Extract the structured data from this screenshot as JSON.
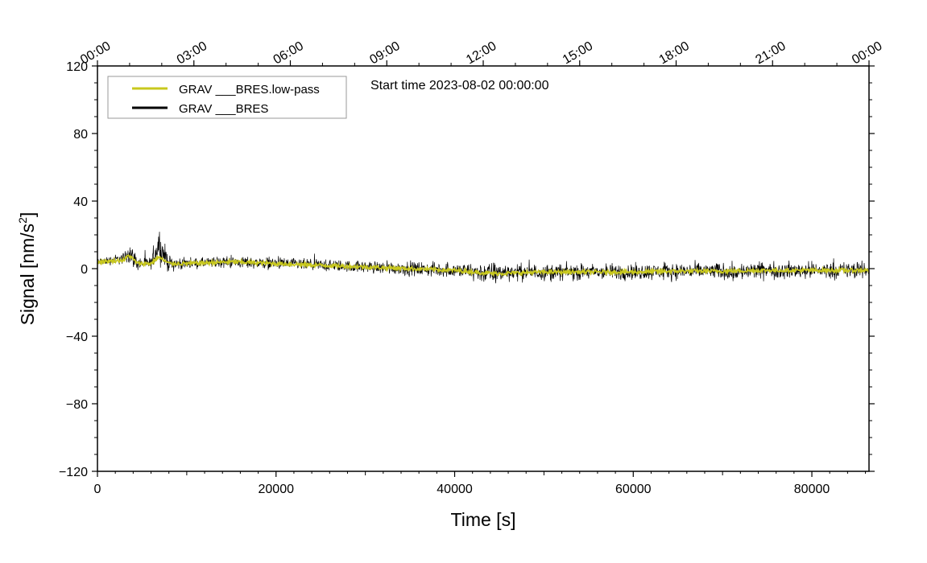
{
  "chart_data": {
    "type": "line",
    "xlabel": "Time [s]",
    "ylabel_text": "Signal [nm/s",
    "ylabel_sup": "2",
    "ylabel_close": "]",
    "xlim": [
      0,
      86400
    ],
    "ylim": [
      -120,
      120
    ],
    "x_ticks": [
      0,
      20000,
      40000,
      60000,
      80000
    ],
    "x_tick_labels": [
      "0",
      "20000",
      "40000",
      "60000",
      "80000"
    ],
    "y_ticks": [
      -120,
      -80,
      -40,
      0,
      40,
      80,
      120
    ],
    "y_tick_labels": [
      "−120",
      "−80",
      "−40",
      "0",
      "40",
      "80",
      "120"
    ],
    "top_axis": {
      "tick_seconds": [
        0,
        10800,
        21600,
        32400,
        43200,
        54000,
        64800,
        75600,
        86400
      ],
      "tick_labels": [
        "00:00",
        "03:00",
        "06:00",
        "09:00",
        "12:00",
        "15:00",
        "18:00",
        "21:00",
        "00:00"
      ]
    },
    "annotation": "Start time 2023-08-02 00:00:00",
    "legend_position": "top-left",
    "grid": false,
    "series": [
      {
        "name": "GRAV ___BRES.low-pass",
        "color": "#c8c81e",
        "x": [
          0,
          1500,
          3000,
          3500,
          4500,
          6000,
          6800,
          8000,
          10000,
          15000,
          20000,
          25000,
          30000,
          35000,
          40000,
          44500,
          50000,
          55000,
          60000,
          65000,
          70000,
          75000,
          80000,
          85000,
          86400
        ],
        "y": [
          4,
          4.5,
          5,
          8,
          3,
          3,
          7,
          3,
          3,
          4,
          3,
          2,
          1,
          0,
          -1,
          -3,
          -2,
          -2,
          -2,
          -1.5,
          -1.5,
          -1,
          -1,
          -1,
          -1
        ]
      },
      {
        "name": "GRAV ___BRES",
        "color": "#000000",
        "x": [
          0,
          1500,
          3000,
          3500,
          4500,
          6000,
          6800,
          7500,
          8000,
          10000,
          15000,
          20000,
          25000,
          30000,
          35000,
          40000,
          44500,
          45500,
          50000,
          55000,
          60000,
          65000,
          70000,
          71000,
          75000,
          80000,
          85000,
          86400
        ],
        "y": [
          4,
          5,
          6,
          10,
          3,
          3,
          14,
          8,
          3,
          3,
          4,
          3,
          2,
          1,
          0,
          -1,
          -3,
          -2,
          -2,
          -2,
          -2,
          -1.5,
          -1.5,
          -2,
          -1,
          -1,
          -1,
          -1
        ],
        "envelope_half_width": [
          3,
          4,
          5,
          10,
          6,
          5,
          14,
          10,
          7,
          4,
          5,
          5,
          5,
          5,
          6,
          6,
          10,
          7,
          7,
          7,
          7,
          7,
          7,
          8,
          7,
          7,
          7,
          7
        ]
      }
    ]
  }
}
